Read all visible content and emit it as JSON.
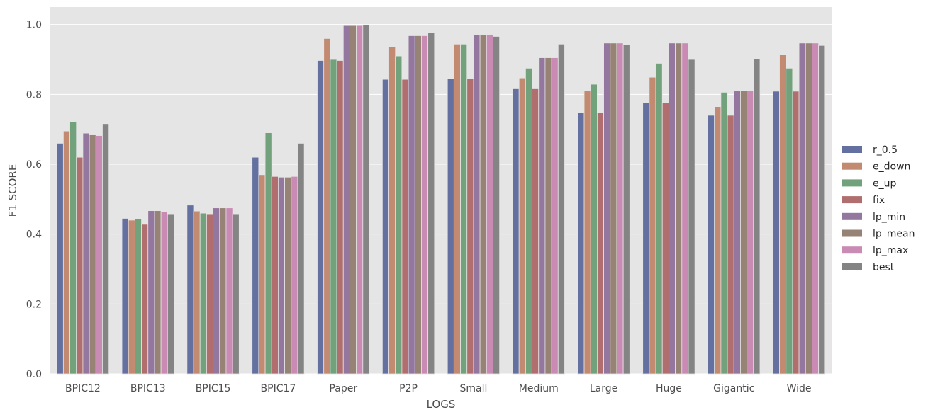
{
  "chart_data": {
    "type": "bar",
    "title": "",
    "xlabel": "LOGS",
    "ylabel": "F1 SCORE",
    "ylim": [
      0,
      1.05
    ],
    "yticks": [
      "0.0",
      "0.2",
      "0.4",
      "0.6",
      "0.8",
      "1.0"
    ],
    "grid": true,
    "legend_position": "right",
    "categories": [
      "BPIC12",
      "BPIC13",
      "BPIC15",
      "BPIC17",
      "Paper",
      "P2P",
      "Small",
      "Medium",
      "Large",
      "Huge",
      "Gigantic",
      "Wide"
    ],
    "series": [
      {
        "name": "r_0.5",
        "color": "#6470a0",
        "values": [
          0.66,
          0.445,
          0.483,
          0.62,
          0.897,
          0.843,
          0.845,
          0.816,
          0.748,
          0.776,
          0.74,
          0.809
        ]
      },
      {
        "name": "e_down",
        "color": "#c28a70",
        "values": [
          0.695,
          0.44,
          0.466,
          0.57,
          0.96,
          0.936,
          0.944,
          0.847,
          0.81,
          0.849,
          0.765,
          0.915
        ]
      },
      {
        "name": "e_up",
        "color": "#72a27c",
        "values": [
          0.721,
          0.443,
          0.46,
          0.69,
          0.9,
          0.91,
          0.944,
          0.875,
          0.829,
          0.889,
          0.806,
          0.875
        ]
      },
      {
        "name": "fix",
        "color": "#b06e6e",
        "values": [
          0.62,
          0.428,
          0.458,
          0.565,
          0.897,
          0.843,
          0.845,
          0.816,
          0.748,
          0.776,
          0.74,
          0.809
        ]
      },
      {
        "name": "lp_min",
        "color": "#93779f",
        "values": [
          0.689,
          0.467,
          0.475,
          0.563,
          0.997,
          0.968,
          0.971,
          0.905,
          0.947,
          0.947,
          0.81,
          0.947
        ]
      },
      {
        "name": "lp_mean",
        "color": "#978375",
        "values": [
          0.686,
          0.467,
          0.475,
          0.563,
          0.997,
          0.968,
          0.971,
          0.905,
          0.947,
          0.947,
          0.81,
          0.947
        ]
      },
      {
        "name": "lp_max",
        "color": "#c98bb4",
        "values": [
          0.682,
          0.464,
          0.475,
          0.565,
          0.997,
          0.968,
          0.971,
          0.905,
          0.947,
          0.947,
          0.81,
          0.947
        ]
      },
      {
        "name": "best",
        "color": "#848484",
        "values": [
          0.716,
          0.458,
          0.458,
          0.66,
          0.999,
          0.976,
          0.966,
          0.944,
          0.942,
          0.9,
          0.902,
          0.94
        ]
      }
    ]
  }
}
